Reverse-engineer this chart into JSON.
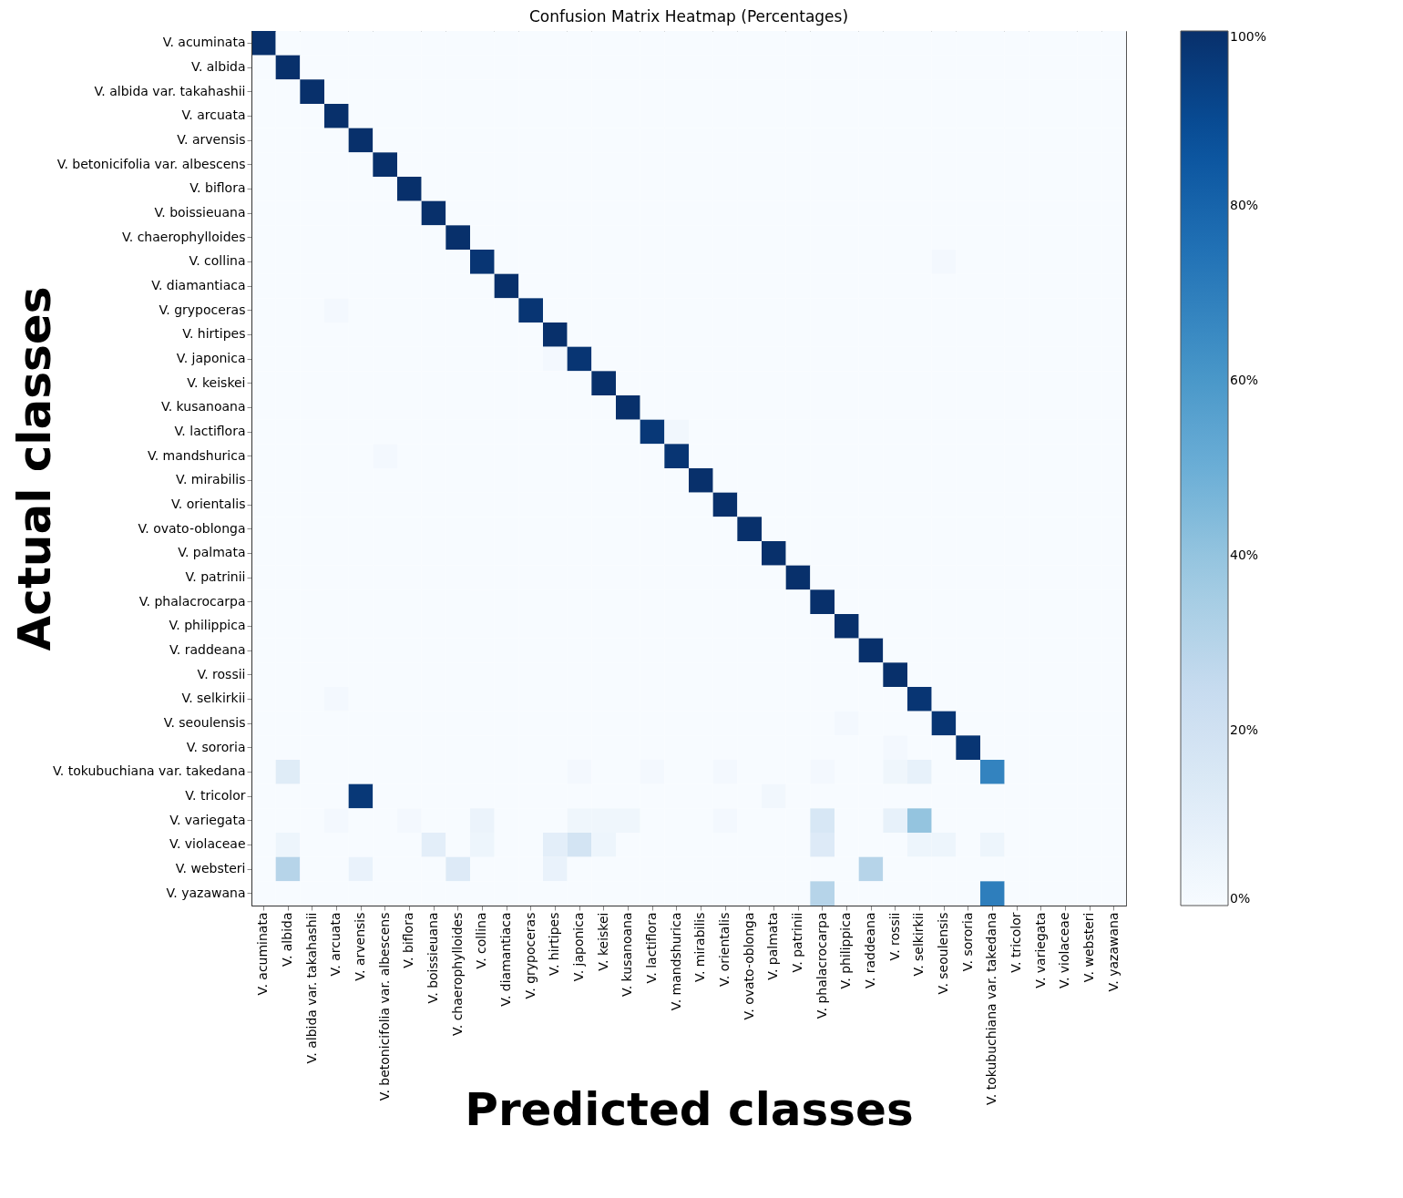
{
  "chart_data": {
    "type": "heatmap",
    "title": "Confusion Matrix Heatmap (Percentages)",
    "xlabel": "Predicted classes",
    "ylabel": "Actual classes",
    "categories": [
      "V. acuminata",
      "V. albida",
      "V. albida var. takahashii",
      "V. arcuata",
      "V. arvensis",
      "V. betonicifolia var. albescens",
      "V. biflora",
      "V. boissieuana",
      "V. chaerophylloides",
      "V. collina",
      "V. diamantiaca",
      "V. grypoceras",
      "V. hirtipes",
      "V. japonica",
      "V. keiskei",
      "V. kusanoana",
      "V. lactiflora",
      "V. mandshurica",
      "V. mirabilis",
      "V. orientalis",
      "V. ovato-oblonga",
      "V. palmata",
      "V. patrinii",
      "V. phalacrocarpa",
      "V. philippica",
      "V. raddeana",
      "V. rossii",
      "V. selkirkii",
      "V. seoulensis",
      "V. sororia",
      "V. tokubuchiana var. takedana",
      "V. tricolor",
      "V. variegata",
      "V. violaceae",
      "V. websteri",
      "V. yazawana"
    ],
    "y_categories": [
      "V. acuminata",
      "V. albida",
      "V. albida var. takahashii",
      "V. arcuata",
      "V. arvensis",
      "V. betonicifolia var. albescens",
      "V. biflora",
      "V. boissieuana",
      "V. chaerophylloides",
      "V. collina",
      "V. diamantiaca",
      "V. grypoceras",
      "V. hirtipes",
      "V. japonica",
      "V. keiskei",
      "V. kusanoana",
      "V. lactiflora",
      "V. mandshurica",
      "V. mirabilis",
      "V. orientalis",
      "V. ovato-oblonga",
      "V. palmata",
      "V. patrinii",
      "V. phalacrocarpa",
      "V. philippica",
      "V. raddeana",
      "V. rossii",
      "V. selkirkii",
      "V. seoulensis",
      "V. sororia",
      "V. tokubuchiana var. takedana",
      "V. tricolor",
      "V. variegata",
      "V. violaceae",
      "V. websteri",
      "V. yazawana"
    ],
    "cells": [
      [
        100,
        0,
        0,
        0,
        0,
        0,
        0,
        0,
        0,
        0,
        0,
        0,
        0,
        0,
        0,
        0,
        0,
        0,
        0,
        0,
        0,
        0,
        0,
        0,
        0,
        0,
        0,
        0,
        0,
        0,
        0,
        0,
        0,
        0,
        0,
        0
      ],
      [
        0,
        100,
        0,
        0,
        0,
        0,
        0,
        0,
        0,
        0,
        0,
        0,
        0,
        0,
        0,
        0,
        0,
        0,
        0,
        0,
        0,
        0,
        0,
        0,
        0,
        0,
        0,
        0,
        0,
        0,
        0,
        0,
        0,
        0,
        0,
        0
      ],
      [
        0,
        0,
        100,
        0,
        0,
        0,
        0,
        0,
        0,
        0,
        0,
        0,
        0,
        0,
        0,
        0,
        0,
        0,
        0,
        0,
        0,
        0,
        0,
        0,
        0,
        0,
        0,
        0,
        0,
        0,
        0,
        0,
        0,
        0,
        0,
        0
      ],
      [
        0,
        0,
        0,
        100,
        0,
        0,
        0,
        0,
        0,
        0,
        0,
        0,
        0,
        0,
        0,
        0,
        0,
        0,
        0,
        0,
        0,
        0,
        0,
        0,
        0,
        0,
        0,
        0,
        0,
        0,
        0,
        0,
        0,
        0,
        0,
        0
      ],
      [
        0,
        0,
        0,
        0,
        100,
        0,
        0,
        0,
        0,
        0,
        0,
        0,
        0,
        0,
        0,
        0,
        0,
        0,
        0,
        0,
        0,
        0,
        0,
        0,
        0,
        0,
        0,
        0,
        0,
        0,
        0,
        0,
        0,
        0,
        0,
        0
      ],
      [
        0,
        0,
        0,
        0,
        0,
        100,
        0,
        0,
        0,
        0,
        0,
        0,
        0,
        0,
        0,
        0,
        0,
        0,
        0,
        0,
        0,
        0,
        0,
        0,
        0,
        0,
        0,
        0,
        0,
        0,
        0,
        0,
        0,
        0,
        0,
        0
      ],
      [
        0,
        0,
        0,
        0,
        0,
        0,
        100,
        0,
        0,
        0,
        0,
        0,
        0,
        0,
        0,
        0,
        0,
        0,
        0,
        0,
        0,
        0,
        0,
        0,
        0,
        0,
        0,
        0,
        0,
        0,
        0,
        0,
        0,
        0,
        0,
        0
      ],
      [
        0,
        0,
        0,
        0,
        0,
        0,
        0,
        100,
        0,
        0,
        0,
        0,
        0,
        0,
        0,
        0,
        0,
        0,
        0,
        0,
        0,
        0,
        0,
        0,
        0,
        0,
        0,
        0,
        0,
        0,
        0,
        0,
        0,
        0,
        0,
        0
      ],
      [
        0,
        0,
        0,
        0,
        0,
        0,
        0,
        0,
        100,
        0,
        0,
        0,
        0,
        0,
        0,
        0,
        0,
        0,
        0,
        0,
        0,
        0,
        0,
        0,
        0,
        0,
        0,
        0,
        0,
        0,
        0,
        0,
        0,
        0,
        0,
        0
      ],
      [
        0,
        0,
        0,
        0,
        0,
        0,
        0,
        0,
        0,
        98,
        0,
        0,
        0,
        0,
        0,
        0,
        0,
        0,
        0,
        0,
        0,
        0,
        0,
        0,
        0,
        0,
        0,
        0,
        2,
        0,
        0,
        0,
        0,
        0,
        0,
        0
      ],
      [
        0,
        0,
        0,
        0,
        0,
        0,
        0,
        0,
        0,
        0,
        100,
        0,
        0,
        0,
        0,
        0,
        0,
        0,
        0,
        0,
        0,
        0,
        0,
        0,
        0,
        0,
        0,
        0,
        0,
        0,
        0,
        0,
        0,
        0,
        0,
        0
      ],
      [
        0,
        0,
        0,
        2,
        0,
        0,
        0,
        0,
        0,
        0,
        0,
        98,
        0,
        0,
        0,
        0,
        0,
        0,
        0,
        0,
        0,
        0,
        0,
        0,
        0,
        0,
        0,
        0,
        0,
        0,
        0,
        0,
        0,
        0,
        0,
        0
      ],
      [
        0,
        0,
        0,
        0,
        0,
        0,
        0,
        0,
        0,
        0,
        0,
        0,
        100,
        0,
        0,
        0,
        0,
        0,
        0,
        0,
        0,
        0,
        0,
        0,
        0,
        0,
        0,
        0,
        0,
        0,
        0,
        0,
        0,
        0,
        0,
        0
      ],
      [
        0,
        0,
        0,
        0,
        0,
        0,
        0,
        0,
        0,
        0,
        0,
        0,
        2,
        98,
        0,
        0,
        0,
        0,
        0,
        0,
        0,
        0,
        0,
        0,
        0,
        0,
        0,
        0,
        0,
        0,
        0,
        0,
        0,
        0,
        0,
        0
      ],
      [
        0,
        0,
        0,
        0,
        0,
        0,
        0,
        0,
        0,
        0,
        0,
        0,
        0,
        0,
        100,
        0,
        0,
        0,
        0,
        0,
        0,
        0,
        0,
        0,
        0,
        0,
        0,
        0,
        0,
        0,
        0,
        0,
        0,
        0,
        0,
        0
      ],
      [
        0,
        0,
        0,
        0,
        0,
        0,
        0,
        0,
        0,
        0,
        0,
        0,
        0,
        0,
        0,
        100,
        0,
        0,
        0,
        0,
        0,
        0,
        0,
        0,
        0,
        0,
        0,
        0,
        0,
        0,
        0,
        0,
        0,
        0,
        0,
        0
      ],
      [
        0,
        0,
        0,
        0,
        0,
        0,
        0,
        0,
        0,
        0,
        0,
        0,
        0,
        0,
        0,
        0,
        97,
        3,
        0,
        0,
        0,
        0,
        0,
        0,
        0,
        0,
        0,
        0,
        0,
        0,
        0,
        0,
        0,
        0,
        0,
        0
      ],
      [
        0,
        0,
        0,
        0,
        0,
        2,
        0,
        0,
        0,
        0,
        0,
        0,
        0,
        0,
        0,
        0,
        0,
        98,
        0,
        0,
        0,
        0,
        0,
        0,
        0,
        0,
        0,
        0,
        0,
        0,
        0,
        0,
        0,
        0,
        0,
        0
      ],
      [
        0,
        0,
        0,
        0,
        0,
        0,
        0,
        0,
        0,
        0,
        0,
        0,
        0,
        0,
        0,
        0,
        0,
        0,
        100,
        0,
        0,
        0,
        0,
        0,
        0,
        0,
        0,
        0,
        0,
        0,
        0,
        0,
        0,
        0,
        0,
        0
      ],
      [
        0,
        0,
        0,
        0,
        0,
        0,
        0,
        0,
        0,
        0,
        0,
        0,
        0,
        0,
        0,
        0,
        0,
        0,
        0,
        100,
        0,
        0,
        0,
        0,
        0,
        0,
        0,
        0,
        0,
        0,
        0,
        0,
        0,
        0,
        0,
        0
      ],
      [
        0,
        0,
        0,
        0,
        0,
        0,
        0,
        0,
        0,
        0,
        0,
        0,
        0,
        0,
        0,
        0,
        0,
        0,
        0,
        0,
        100,
        0,
        0,
        0,
        0,
        0,
        0,
        0,
        0,
        0,
        0,
        0,
        0,
        0,
        0,
        0
      ],
      [
        0,
        0,
        0,
        0,
        0,
        0,
        0,
        0,
        0,
        0,
        0,
        0,
        0,
        0,
        0,
        0,
        0,
        0,
        0,
        0,
        0,
        100,
        0,
        0,
        0,
        0,
        0,
        0,
        0,
        0,
        0,
        0,
        0,
        0,
        0,
        0
      ],
      [
        0,
        0,
        0,
        0,
        0,
        0,
        0,
        0,
        0,
        0,
        0,
        0,
        0,
        0,
        0,
        0,
        0,
        0,
        0,
        0,
        0,
        0,
        100,
        0,
        0,
        0,
        0,
        0,
        0,
        0,
        0,
        0,
        0,
        0,
        0,
        0
      ],
      [
        0,
        0,
        0,
        0,
        0,
        0,
        0,
        0,
        0,
        0,
        0,
        0,
        0,
        0,
        0,
        0,
        0,
        0,
        0,
        0,
        0,
        0,
        0,
        100,
        0,
        0,
        0,
        0,
        0,
        0,
        0,
        0,
        0,
        0,
        0,
        0
      ],
      [
        0,
        0,
        0,
        0,
        0,
        0,
        0,
        0,
        0,
        0,
        0,
        0,
        0,
        0,
        0,
        0,
        0,
        0,
        0,
        0,
        0,
        0,
        0,
        0,
        100,
        0,
        0,
        0,
        0,
        0,
        0,
        0,
        0,
        0,
        0,
        0
      ],
      [
        0,
        0,
        0,
        0,
        0,
        0,
        0,
        0,
        0,
        0,
        0,
        0,
        0,
        0,
        0,
        0,
        0,
        0,
        0,
        0,
        0,
        0,
        0,
        0,
        0,
        100,
        0,
        0,
        0,
        0,
        0,
        0,
        0,
        0,
        0,
        0
      ],
      [
        0,
        0,
        0,
        0,
        0,
        0,
        0,
        0,
        0,
        0,
        0,
        0,
        0,
        0,
        0,
        0,
        0,
        0,
        0,
        0,
        0,
        0,
        0,
        0,
        0,
        0,
        100,
        0,
        0,
        0,
        0,
        0,
        0,
        0,
        0,
        0
      ],
      [
        0,
        0,
        0,
        2,
        0,
        0,
        0,
        0,
        0,
        0,
        0,
        0,
        0,
        0,
        0,
        0,
        0,
        0,
        0,
        0,
        0,
        0,
        0,
        0,
        0,
        0,
        0,
        98,
        0,
        0,
        0,
        0,
        0,
        0,
        0,
        0
      ],
      [
        0,
        0,
        0,
        0,
        0,
        0,
        0,
        0,
        0,
        0,
        0,
        0,
        0,
        0,
        0,
        0,
        0,
        0,
        0,
        0,
        0,
        0,
        0,
        0,
        2,
        0,
        0,
        0,
        98,
        0,
        0,
        0,
        0,
        0,
        0,
        0
      ],
      [
        0,
        0,
        0,
        0,
        0,
        0,
        0,
        0,
        0,
        0,
        0,
        0,
        0,
        0,
        0,
        0,
        0,
        0,
        0,
        0,
        0,
        0,
        0,
        0,
        0,
        0,
        2,
        0,
        0,
        98,
        0,
        0,
        0,
        0,
        0,
        0
      ],
      [
        0,
        12,
        0,
        0,
        0,
        0,
        0,
        0,
        0,
        0,
        0,
        0,
        0,
        2,
        0,
        0,
        2,
        0,
        0,
        2,
        0,
        0,
        0,
        2,
        0,
        0,
        4,
        8,
        0,
        0,
        68,
        0,
        0,
        0,
        0,
        0
      ],
      [
        0,
        0,
        0,
        0,
        97,
        0,
        0,
        0,
        0,
        0,
        0,
        0,
        0,
        0,
        0,
        0,
        0,
        0,
        0,
        0,
        0,
        3,
        0,
        0,
        0,
        0,
        0,
        0,
        0,
        0,
        0,
        0,
        0,
        0,
        0,
        0
      ],
      [
        0,
        0,
        0,
        2,
        0,
        0,
        2,
        0,
        0,
        6,
        0,
        0,
        0,
        4,
        4,
        4,
        0,
        0,
        0,
        2,
        0,
        0,
        0,
        16,
        0,
        0,
        8,
        40,
        0,
        0,
        0,
        0,
        0,
        0,
        0,
        0
      ],
      [
        0,
        5,
        0,
        0,
        0,
        0,
        0,
        10,
        0,
        5,
        0,
        0,
        10,
        18,
        5,
        0,
        0,
        0,
        0,
        0,
        0,
        0,
        0,
        13,
        0,
        0,
        0,
        5,
        5,
        0,
        5,
        0,
        0,
        0,
        0,
        0
      ],
      [
        0,
        30,
        0,
        0,
        7,
        0,
        0,
        0,
        13,
        0,
        0,
        0,
        7,
        0,
        0,
        0,
        0,
        0,
        0,
        0,
        0,
        0,
        0,
        0,
        0,
        30,
        0,
        0,
        0,
        0,
        0,
        0,
        0,
        0,
        0,
        0
      ],
      [
        0,
        0,
        0,
        0,
        0,
        0,
        0,
        0,
        0,
        0,
        0,
        0,
        0,
        0,
        0,
        0,
        0,
        0,
        0,
        0,
        0,
        0,
        0,
        30,
        0,
        0,
        0,
        0,
        0,
        0,
        70,
        0,
        0,
        0,
        0,
        0
      ]
    ],
    "clim": [
      0,
      100
    ],
    "cticks": [
      {
        "value": 0,
        "label": "0%"
      },
      {
        "value": 20,
        "label": "20%"
      },
      {
        "value": 40,
        "label": "40%"
      },
      {
        "value": 60,
        "label": "60%"
      },
      {
        "value": 80,
        "label": "80%"
      },
      {
        "value": 100,
        "label": "100%"
      }
    ]
  }
}
